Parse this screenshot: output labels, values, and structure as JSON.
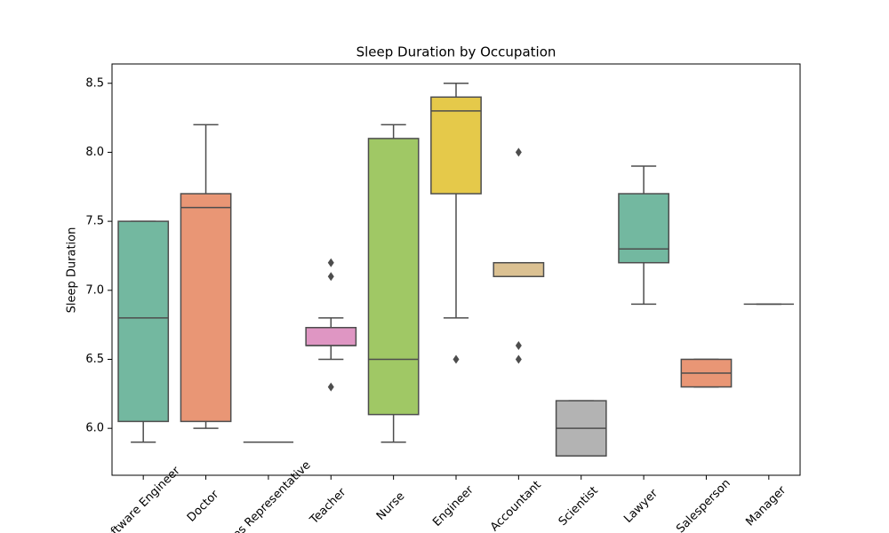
{
  "chart_data": {
    "type": "box",
    "title": "Sleep Duration by Occupation",
    "y_label": "Sleep Duration",
    "categories": [
      "Software Engineer",
      "Doctor",
      "Sales Representative",
      "Teacher",
      "Nurse",
      "Engineer",
      "Accountant",
      "Scientist",
      "Lawyer",
      "Salesperson",
      "Manager"
    ],
    "low": [
      5.9,
      6.0,
      5.9,
      6.5,
      5.9,
      6.8,
      7.1,
      5.8,
      6.9,
      6.3,
      6.9
    ],
    "q1": [
      6.05,
      6.05,
      5.9,
      6.6,
      6.1,
      7.7,
      7.1,
      5.8,
      7.2,
      6.3,
      6.9
    ],
    "median": [
      6.8,
      7.6,
      5.9,
      6.6,
      6.5,
      8.3,
      7.2,
      6.0,
      7.3,
      6.4,
      6.9
    ],
    "q3": [
      7.5,
      7.7,
      5.9,
      6.73,
      8.1,
      8.4,
      7.2,
      6.2,
      7.7,
      6.5,
      6.9
    ],
    "high": [
      7.5,
      8.2,
      5.9,
      6.8,
      8.2,
      8.5,
      7.2,
      6.2,
      7.9,
      6.5,
      6.9
    ],
    "outliers": [
      [],
      [],
      [],
      [
        6.3,
        7.1,
        7.2
      ],
      [],
      [
        6.5
      ],
      [
        6.5,
        6.6,
        8.0
      ],
      [],
      [],
      [],
      []
    ],
    "colors": [
      "#73b8a0",
      "#e99675",
      "#95a3c3",
      "#df96c3",
      "#a0c865",
      "#e5c94a",
      "#dbc192",
      "#b3b3b3",
      "#73b8a0",
      "#e99675",
      "#95a3c3"
    ],
    "ylim": [
      5.66,
      8.64
    ],
    "yticks": [
      {
        "value": 6,
        "label": "6.0"
      },
      6.5,
      {
        "value": 7,
        "label": "7.0"
      },
      7.5,
      {
        "value": 8,
        "label": "8.0"
      },
      8.5
    ]
  }
}
